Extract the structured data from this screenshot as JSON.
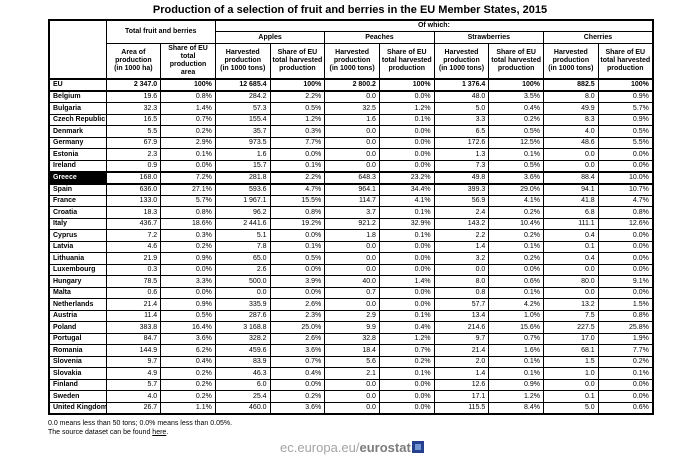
{
  "chart_data": {
    "type": "table",
    "title": "Production of a selection of fruit and berries in the EU Member States, 2015",
    "column_groups": {
      "total_label": "Total fruit and berries",
      "of_which_label": "Of which:",
      "fruits": [
        "Apples",
        "Peaches",
        "Strawberries",
        "Cherries"
      ]
    },
    "sub_headers": {
      "area": "Area of\nproduction\n(in 1000 ha)",
      "share_area": "Share of EU total\nproduction area",
      "harvested": "Harvested\nproduction\n(in 1000 tons)",
      "share_harvested": "Share of EU\ntotal harvested\nproduction"
    },
    "value_columns": [
      "Total fruit and berries - Area of production (in 1000 ha)",
      "Total fruit and berries - Share of EU total production area",
      "Apples - Harvested production (in 1000 tons)",
      "Apples - Share of EU total harvested production",
      "Peaches - Harvested production (in 1000 tons)",
      "Peaches - Share of EU total harvested production",
      "Strawberries - Harvested production (in 1000 tons)",
      "Strawberries - Share of EU total harvested production",
      "Cherries - Harvested production (in 1000 tons)",
      "Cherries - Share of EU total harvested production"
    ],
    "rows": [
      {
        "country": "EU",
        "bold": true,
        "values": [
          "2 347.0",
          "100%",
          "12 685.4",
          "100%",
          "2 800.2",
          "100%",
          "1 376.4",
          "100%",
          "882.5",
          "100%"
        ]
      },
      {
        "country": "Belgium",
        "values": [
          "19.6",
          "0.8%",
          "284.2",
          "2.2%",
          "0.0",
          "0.0%",
          "48.0",
          "3.5%",
          "8.0",
          "0.9%"
        ]
      },
      {
        "country": "Bulgaria",
        "values": [
          "32.3",
          "1.4%",
          "57.3",
          "0.5%",
          "32.5",
          "1.2%",
          "5.0",
          "0.4%",
          "49.9",
          "5.7%"
        ]
      },
      {
        "country": "Czech Republic",
        "values": [
          "16.5",
          "0.7%",
          "155.4",
          "1.2%",
          "1.6",
          "0.1%",
          "3.3",
          "0.2%",
          "8.3",
          "0.9%"
        ]
      },
      {
        "country": "Denmark",
        "values": [
          "5.5",
          "0.2%",
          "35.7",
          "0.3%",
          "0.0",
          "0.0%",
          "6.5",
          "0.5%",
          "4.0",
          "0.5%"
        ]
      },
      {
        "country": "Germany",
        "values": [
          "67.9",
          "2.9%",
          "973.5",
          "7.7%",
          "0.0",
          "0.0%",
          "172.6",
          "12.5%",
          "48.6",
          "5.5%"
        ]
      },
      {
        "country": "Estonia",
        "values": [
          "2.3",
          "0.1%",
          "1.6",
          "0.0%",
          "0.0",
          "0.0%",
          "1.3",
          "0.1%",
          "0.0",
          "0.0%"
        ]
      },
      {
        "country": "Ireland",
        "values": [
          "0.9",
          "0.0%",
          "15.7",
          "0.1%",
          "0.0",
          "0.0%",
          "7.3",
          "0.5%",
          "0.0",
          "0.0%"
        ]
      },
      {
        "country": "Greece",
        "highlight": true,
        "values": [
          "168.0",
          "7.2%",
          "281.8",
          "2.2%",
          "648.3",
          "23.2%",
          "49.8",
          "3.6%",
          "88.4",
          "10.0%"
        ]
      },
      {
        "country": "Spain",
        "values": [
          "636.0",
          "27.1%",
          "593.6",
          "4.7%",
          "964.1",
          "34.4%",
          "399.3",
          "29.0%",
          "94.1",
          "10.7%"
        ]
      },
      {
        "country": "France",
        "values": [
          "133.0",
          "5.7%",
          "1 967.1",
          "15.5%",
          "114.7",
          "4.1%",
          "56.9",
          "4.1%",
          "41.8",
          "4.7%"
        ]
      },
      {
        "country": "Croatia",
        "values": [
          "18.3",
          "0.8%",
          "96.2",
          "0.8%",
          "3.7",
          "0.1%",
          "2.4",
          "0.2%",
          "6.8",
          "0.8%"
        ]
      },
      {
        "country": "Italy",
        "values": [
          "436.7",
          "18.6%",
          "2 441.6",
          "19.2%",
          "921.2",
          "32.9%",
          "143.2",
          "10.4%",
          "111.1",
          "12.6%"
        ]
      },
      {
        "country": "Cyprus",
        "values": [
          "7.2",
          "0.3%",
          "5.1",
          "0.0%",
          "1.8",
          "0.1%",
          "2.2",
          "0.2%",
          "0.4",
          "0.0%"
        ]
      },
      {
        "country": "Latvia",
        "values": [
          "4.6",
          "0.2%",
          "7.8",
          "0.1%",
          "0.0",
          "0.0%",
          "1.4",
          "0.1%",
          "0.1",
          "0.0%"
        ]
      },
      {
        "country": "Lithuania",
        "values": [
          "21.9",
          "0.9%",
          "65.0",
          "0.5%",
          "0.0",
          "0.0%",
          "3.2",
          "0.2%",
          "0.4",
          "0.0%"
        ]
      },
      {
        "country": "Luxembourg",
        "values": [
          "0.3",
          "0.0%",
          "2.6",
          "0.0%",
          "0.0",
          "0.0%",
          "0.0",
          "0.0%",
          "0.0",
          "0.0%"
        ]
      },
      {
        "country": "Hungary",
        "values": [
          "78.5",
          "3.3%",
          "500.0",
          "3.9%",
          "40.0",
          "1.4%",
          "8.0",
          "0.6%",
          "80.0",
          "9.1%"
        ]
      },
      {
        "country": "Malta",
        "values": [
          "0.6",
          "0.0%",
          "0.0",
          "0.0%",
          "0.7",
          "0.0%",
          "0.8",
          "0.1%",
          "0.0",
          "0.0%"
        ]
      },
      {
        "country": "Netherlands",
        "values": [
          "21.4",
          "0.9%",
          "335.9",
          "2.6%",
          "0.0",
          "0.0%",
          "57.7",
          "4.2%",
          "13.2",
          "1.5%"
        ]
      },
      {
        "country": "Austria",
        "values": [
          "11.4",
          "0.5%",
          "287.6",
          "2.3%",
          "2.9",
          "0.1%",
          "13.4",
          "1.0%",
          "7.5",
          "0.8%"
        ]
      },
      {
        "country": "Poland",
        "values": [
          "383.8",
          "16.4%",
          "3 168.8",
          "25.0%",
          "9.9",
          "0.4%",
          "214.6",
          "15.6%",
          "227.5",
          "25.8%"
        ]
      },
      {
        "country": "Portugal",
        "values": [
          "84.7",
          "3.6%",
          "328.2",
          "2.6%",
          "32.8",
          "1.2%",
          "9.7",
          "0.7%",
          "17.0",
          "1.9%"
        ]
      },
      {
        "country": "Romania",
        "values": [
          "144.9",
          "6.2%",
          "459.6",
          "3.6%",
          "18.4",
          "0.7%",
          "21.4",
          "1.6%",
          "68.1",
          "7.7%"
        ]
      },
      {
        "country": "Slovenia",
        "values": [
          "9.7",
          "0.4%",
          "83.9",
          "0.7%",
          "5.6",
          "0.2%",
          "2.0",
          "0.1%",
          "1.5",
          "0.2%"
        ]
      },
      {
        "country": "Slovakia",
        "values": [
          "4.9",
          "0.2%",
          "46.3",
          "0.4%",
          "2.1",
          "0.1%",
          "1.4",
          "0.1%",
          "1.0",
          "0.1%"
        ]
      },
      {
        "country": "Finland",
        "values": [
          "5.7",
          "0.2%",
          "6.0",
          "0.0%",
          "0.0",
          "0.0%",
          "12.6",
          "0.9%",
          "0.0",
          "0.0%"
        ]
      },
      {
        "country": "Sweden",
        "values": [
          "4.0",
          "0.2%",
          "25.4",
          "0.2%",
          "0.0",
          "0.0%",
          "17.1",
          "1.2%",
          "0.1",
          "0.0%"
        ]
      },
      {
        "country": "United Kingdom",
        "values": [
          "26.7",
          "1.1%",
          "460.0",
          "3.6%",
          "0.0",
          "0.0%",
          "115.5",
          "8.4%",
          "5.0",
          "0.6%"
        ]
      }
    ],
    "highlighted_row": "Greece"
  },
  "footnotes": {
    "note1": "0.0 means less than 50 tons; 0.0% means less than 0.05%.",
    "note2_prefix": "The source dataset can be found ",
    "note2_link": "here",
    "note2_suffix": "."
  },
  "footer": {
    "site_prefix": "ec.europa.eu/",
    "site_brand": "eurostat",
    "logo_color": "#24408e"
  }
}
